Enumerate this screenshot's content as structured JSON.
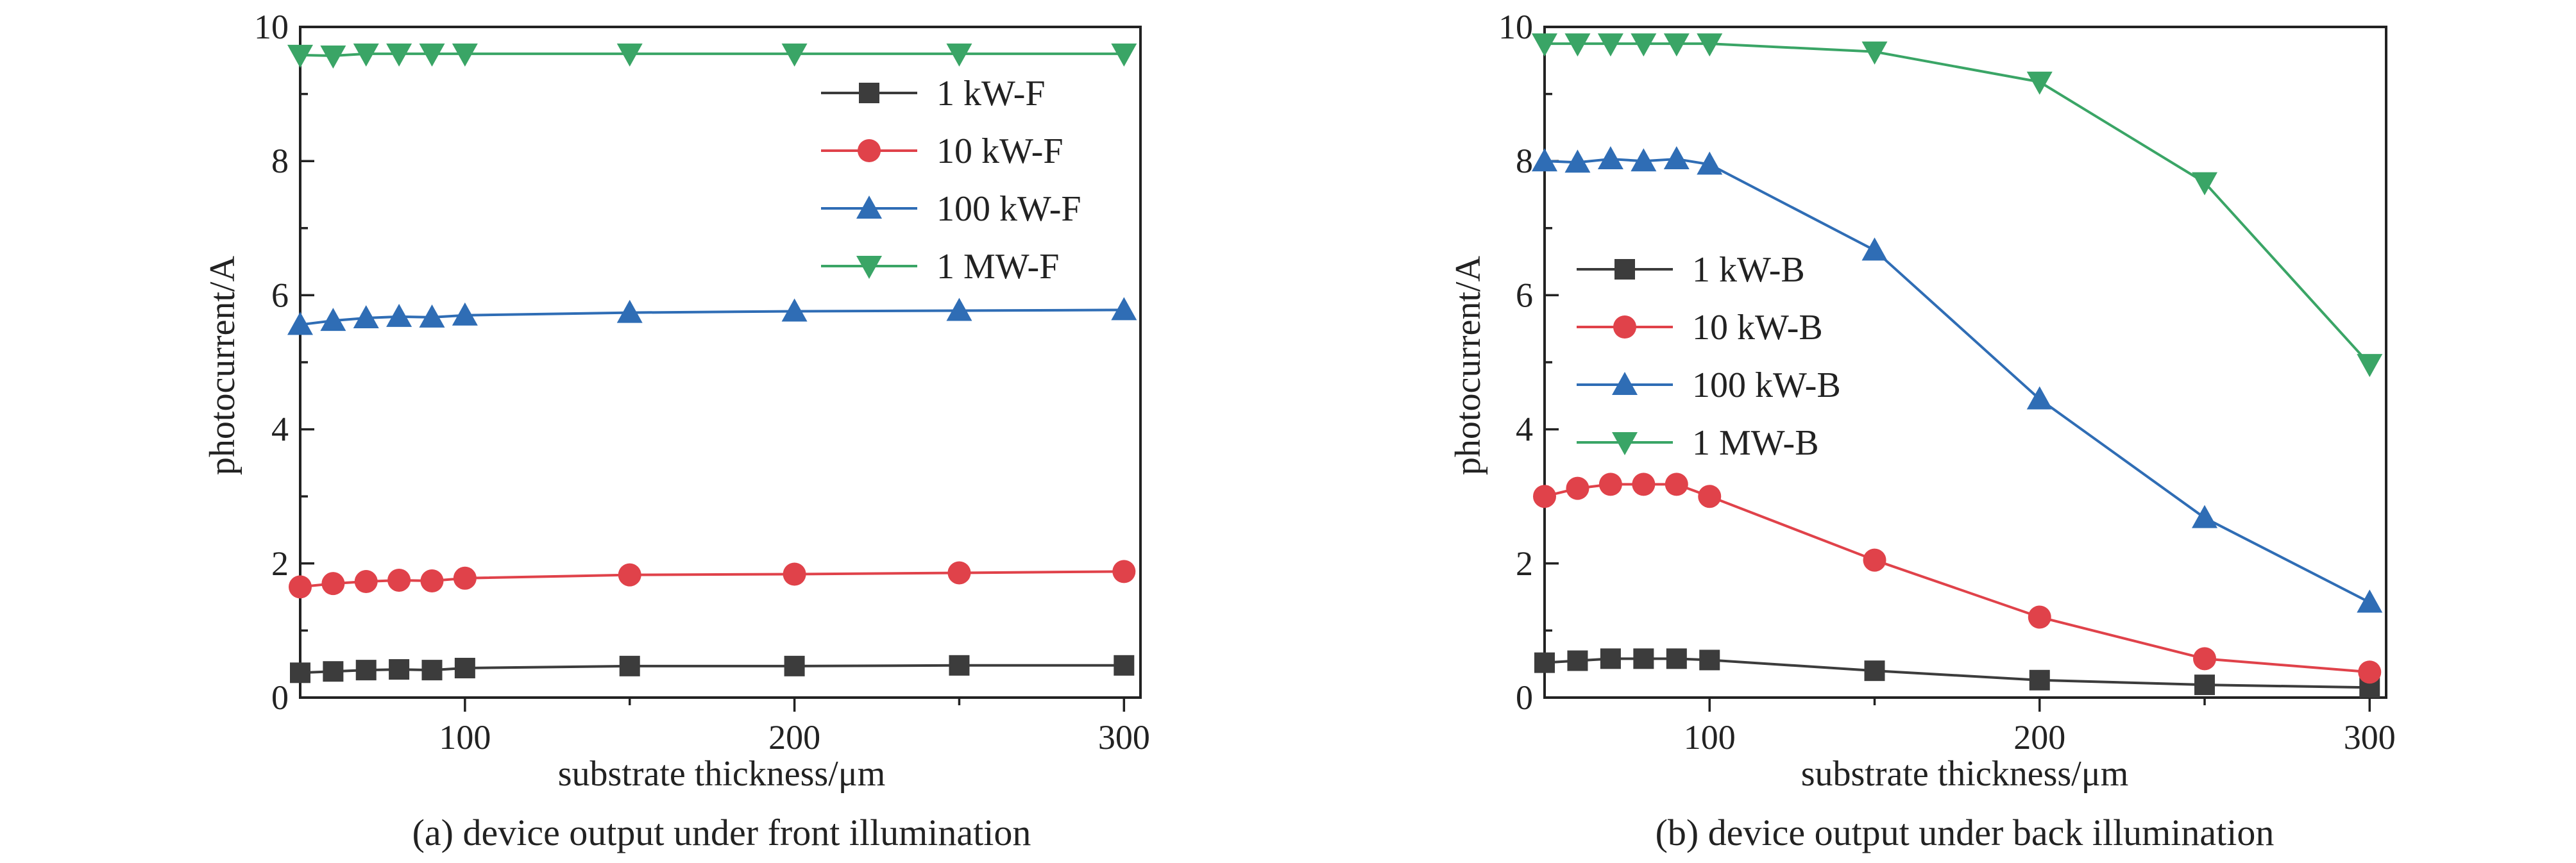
{
  "colors": {
    "1 kW": "#3c3c3c",
    "10 kW": "#e0424a",
    "100 kW": "#2f6db5",
    "1 MW": "#3aa566"
  },
  "markers": {
    "1 kW": "square",
    "10 kW": "circle",
    "100 kW": "triangle-up",
    "1 MW": "triangle-down"
  },
  "chart_data": [
    {
      "type": "line",
      "caption": "(a) device output under front illumination",
      "xlabel": "substrate thickness/μm",
      "ylabel": "photocurrent/A",
      "xlim": [
        50,
        305
      ],
      "ylim": [
        0,
        10
      ],
      "xticks": [
        100,
        200,
        300
      ],
      "yticks": [
        0,
        2,
        4,
        6,
        8,
        10
      ],
      "legend_position": "top-right",
      "x": [
        50,
        60,
        70,
        80,
        90,
        100,
        150,
        200,
        250,
        300
      ],
      "series": [
        {
          "name": "1 kW-F",
          "key": "1 kW",
          "values": [
            0.37,
            0.39,
            0.41,
            0.42,
            0.41,
            0.44,
            0.47,
            0.47,
            0.48,
            0.48
          ]
        },
        {
          "name": "10 kW-F",
          "key": "10 kW",
          "values": [
            1.65,
            1.7,
            1.73,
            1.75,
            1.74,
            1.78,
            1.83,
            1.84,
            1.86,
            1.88
          ]
        },
        {
          "name": "100 kW-F",
          "key": "100 kW",
          "values": [
            5.56,
            5.62,
            5.66,
            5.68,
            5.67,
            5.7,
            5.74,
            5.76,
            5.77,
            5.78
          ]
        },
        {
          "name": "1 MW-F",
          "key": "1 MW",
          "values": [
            9.58,
            9.57,
            9.6,
            9.6,
            9.6,
            9.6,
            9.6,
            9.6,
            9.6,
            9.6
          ]
        }
      ]
    },
    {
      "type": "line",
      "caption": "(b) device output under back illumination",
      "xlabel": "substrate thickness/μm",
      "ylabel": "photocurrent/A",
      "xlim": [
        50,
        305
      ],
      "ylim": [
        0,
        10
      ],
      "xticks": [
        100,
        200,
        300
      ],
      "yticks": [
        0,
        2,
        4,
        6,
        8,
        10
      ],
      "legend_position": "middle-left",
      "x": [
        50,
        60,
        70,
        80,
        90,
        100,
        150,
        200,
        250,
        300
      ],
      "series": [
        {
          "name": "1 kW-B",
          "key": "1 kW",
          "values": [
            0.52,
            0.55,
            0.58,
            0.58,
            0.58,
            0.56,
            0.4,
            0.26,
            0.19,
            0.15
          ]
        },
        {
          "name": "10 kW-B",
          "key": "10 kW",
          "values": [
            3.0,
            3.12,
            3.18,
            3.18,
            3.18,
            3.0,
            2.05,
            1.2,
            0.58,
            0.38
          ]
        },
        {
          "name": "100 kW-B",
          "key": "100 kW",
          "values": [
            8.0,
            7.98,
            8.03,
            8.0,
            8.03,
            7.95,
            6.67,
            4.45,
            2.68,
            1.42
          ]
        },
        {
          "name": "1 MW-B",
          "key": "1 MW",
          "values": [
            9.75,
            9.75,
            9.75,
            9.75,
            9.75,
            9.75,
            9.63,
            9.18,
            7.68,
            4.97
          ]
        }
      ]
    }
  ]
}
